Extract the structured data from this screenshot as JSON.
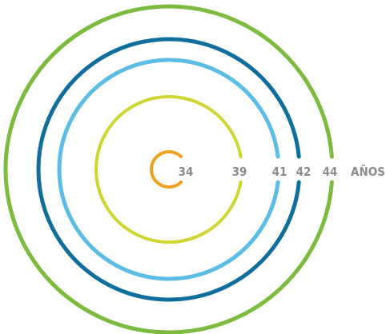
{
  "chart_data": {
    "type": "radial-rings",
    "unit_label": "AÑOS",
    "rings": [
      {
        "value": 34,
        "label": "34",
        "color": "#f0a21e"
      },
      {
        "value": 39,
        "label": "39",
        "color": "#cfd531"
      },
      {
        "value": 41,
        "label": "41",
        "color": "#5bbde6"
      },
      {
        "value": 42,
        "label": "42",
        "color": "#0f6e9b"
      },
      {
        "value": 44,
        "label": "44",
        "color": "#7bbb3e"
      }
    ]
  }
}
